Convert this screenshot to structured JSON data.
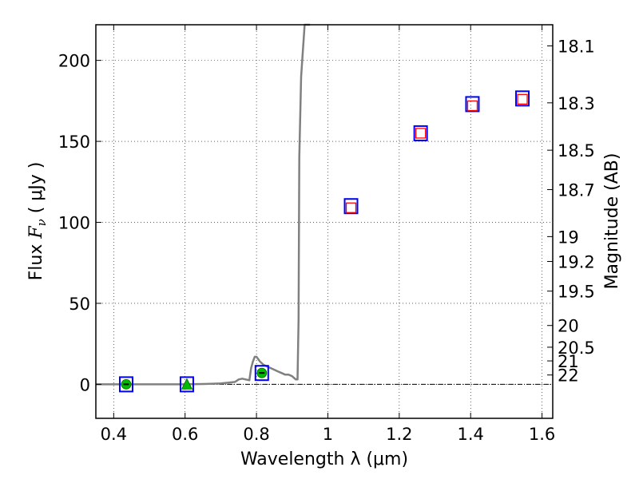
{
  "chart_data": {
    "type": "scatter",
    "title": "",
    "xlabel": "Wavelength  λ (μm)",
    "ylabel_prefix": "Flux  ",
    "ylabel_symbol": "F",
    "ylabel_subscript": "ν",
    "ylabel_suffix": "  ( μJy )",
    "y2label": "Magnitude (AB)",
    "xlim": [
      0.35,
      1.63
    ],
    "ylim": [
      -21,
      222
    ],
    "grid": true,
    "x_ticks": [
      0.4,
      0.6,
      0.8,
      1.0,
      1.2,
      1.4,
      1.6
    ],
    "x_tick_labels": [
      "0.4",
      "0.6",
      "0.8",
      "1",
      "1.2",
      "1.4",
      "1.6"
    ],
    "y_ticks": [
      0,
      50,
      100,
      150,
      200
    ],
    "y_tick_labels": [
      "0",
      "50",
      "100",
      "150",
      "200"
    ],
    "mag_ticks": [
      18.1,
      18.3,
      18.5,
      18.7,
      19,
      19.2,
      19.5,
      20,
      20.5,
      21,
      22
    ],
    "mag_tick_labels": [
      "18.1",
      "18.3",
      "18.5",
      "18.7",
      "19",
      "19.2",
      "19.5",
      "20",
      "20.5",
      "21",
      "22"
    ],
    "zero_line": 0,
    "colors": {
      "model": "#808080",
      "observed": "#0000ff",
      "model_photometry": "#ff0000",
      "detection": "#00bb00"
    },
    "series": [
      {
        "name": "model spectrum",
        "kind": "line",
        "x": [
          0.35,
          0.5,
          0.6,
          0.65,
          0.68,
          0.7,
          0.72,
          0.74,
          0.75,
          0.76,
          0.77,
          0.78,
          0.785,
          0.79,
          0.795,
          0.8,
          0.81,
          0.82,
          0.83,
          0.84,
          0.85,
          0.86,
          0.87,
          0.88,
          0.89,
          0.9,
          0.91,
          0.915,
          0.918,
          0.92,
          0.925,
          0.935,
          0.95
        ],
        "y": [
          0,
          0,
          0,
          0.2,
          0.4,
          0.6,
          1,
          1.5,
          3,
          3.5,
          3,
          2.5,
          10,
          14,
          17,
          17,
          14,
          12,
          11,
          10,
          9,
          8,
          7,
          6,
          6,
          5,
          3,
          3,
          40,
          140,
          190,
          222,
          222
        ]
      },
      {
        "name": "observed photometry",
        "kind": "square",
        "x": [
          0.435,
          0.605,
          0.815,
          1.065,
          1.26,
          1.405,
          1.545
        ],
        "y": [
          0,
          0,
          7,
          110,
          155,
          173,
          176.5
        ]
      },
      {
        "name": "model photometry",
        "kind": "square",
        "x": [
          1.065,
          1.26,
          1.405,
          1.545
        ],
        "y": [
          109,
          155,
          172,
          176
        ]
      },
      {
        "name": "detections",
        "kind": "circle",
        "x": [
          0.435,
          0.815
        ],
        "y": [
          0,
          7
        ]
      },
      {
        "name": "upper limit",
        "kind": "triangle",
        "x": [
          0.605
        ],
        "y": [
          0
        ]
      }
    ]
  }
}
